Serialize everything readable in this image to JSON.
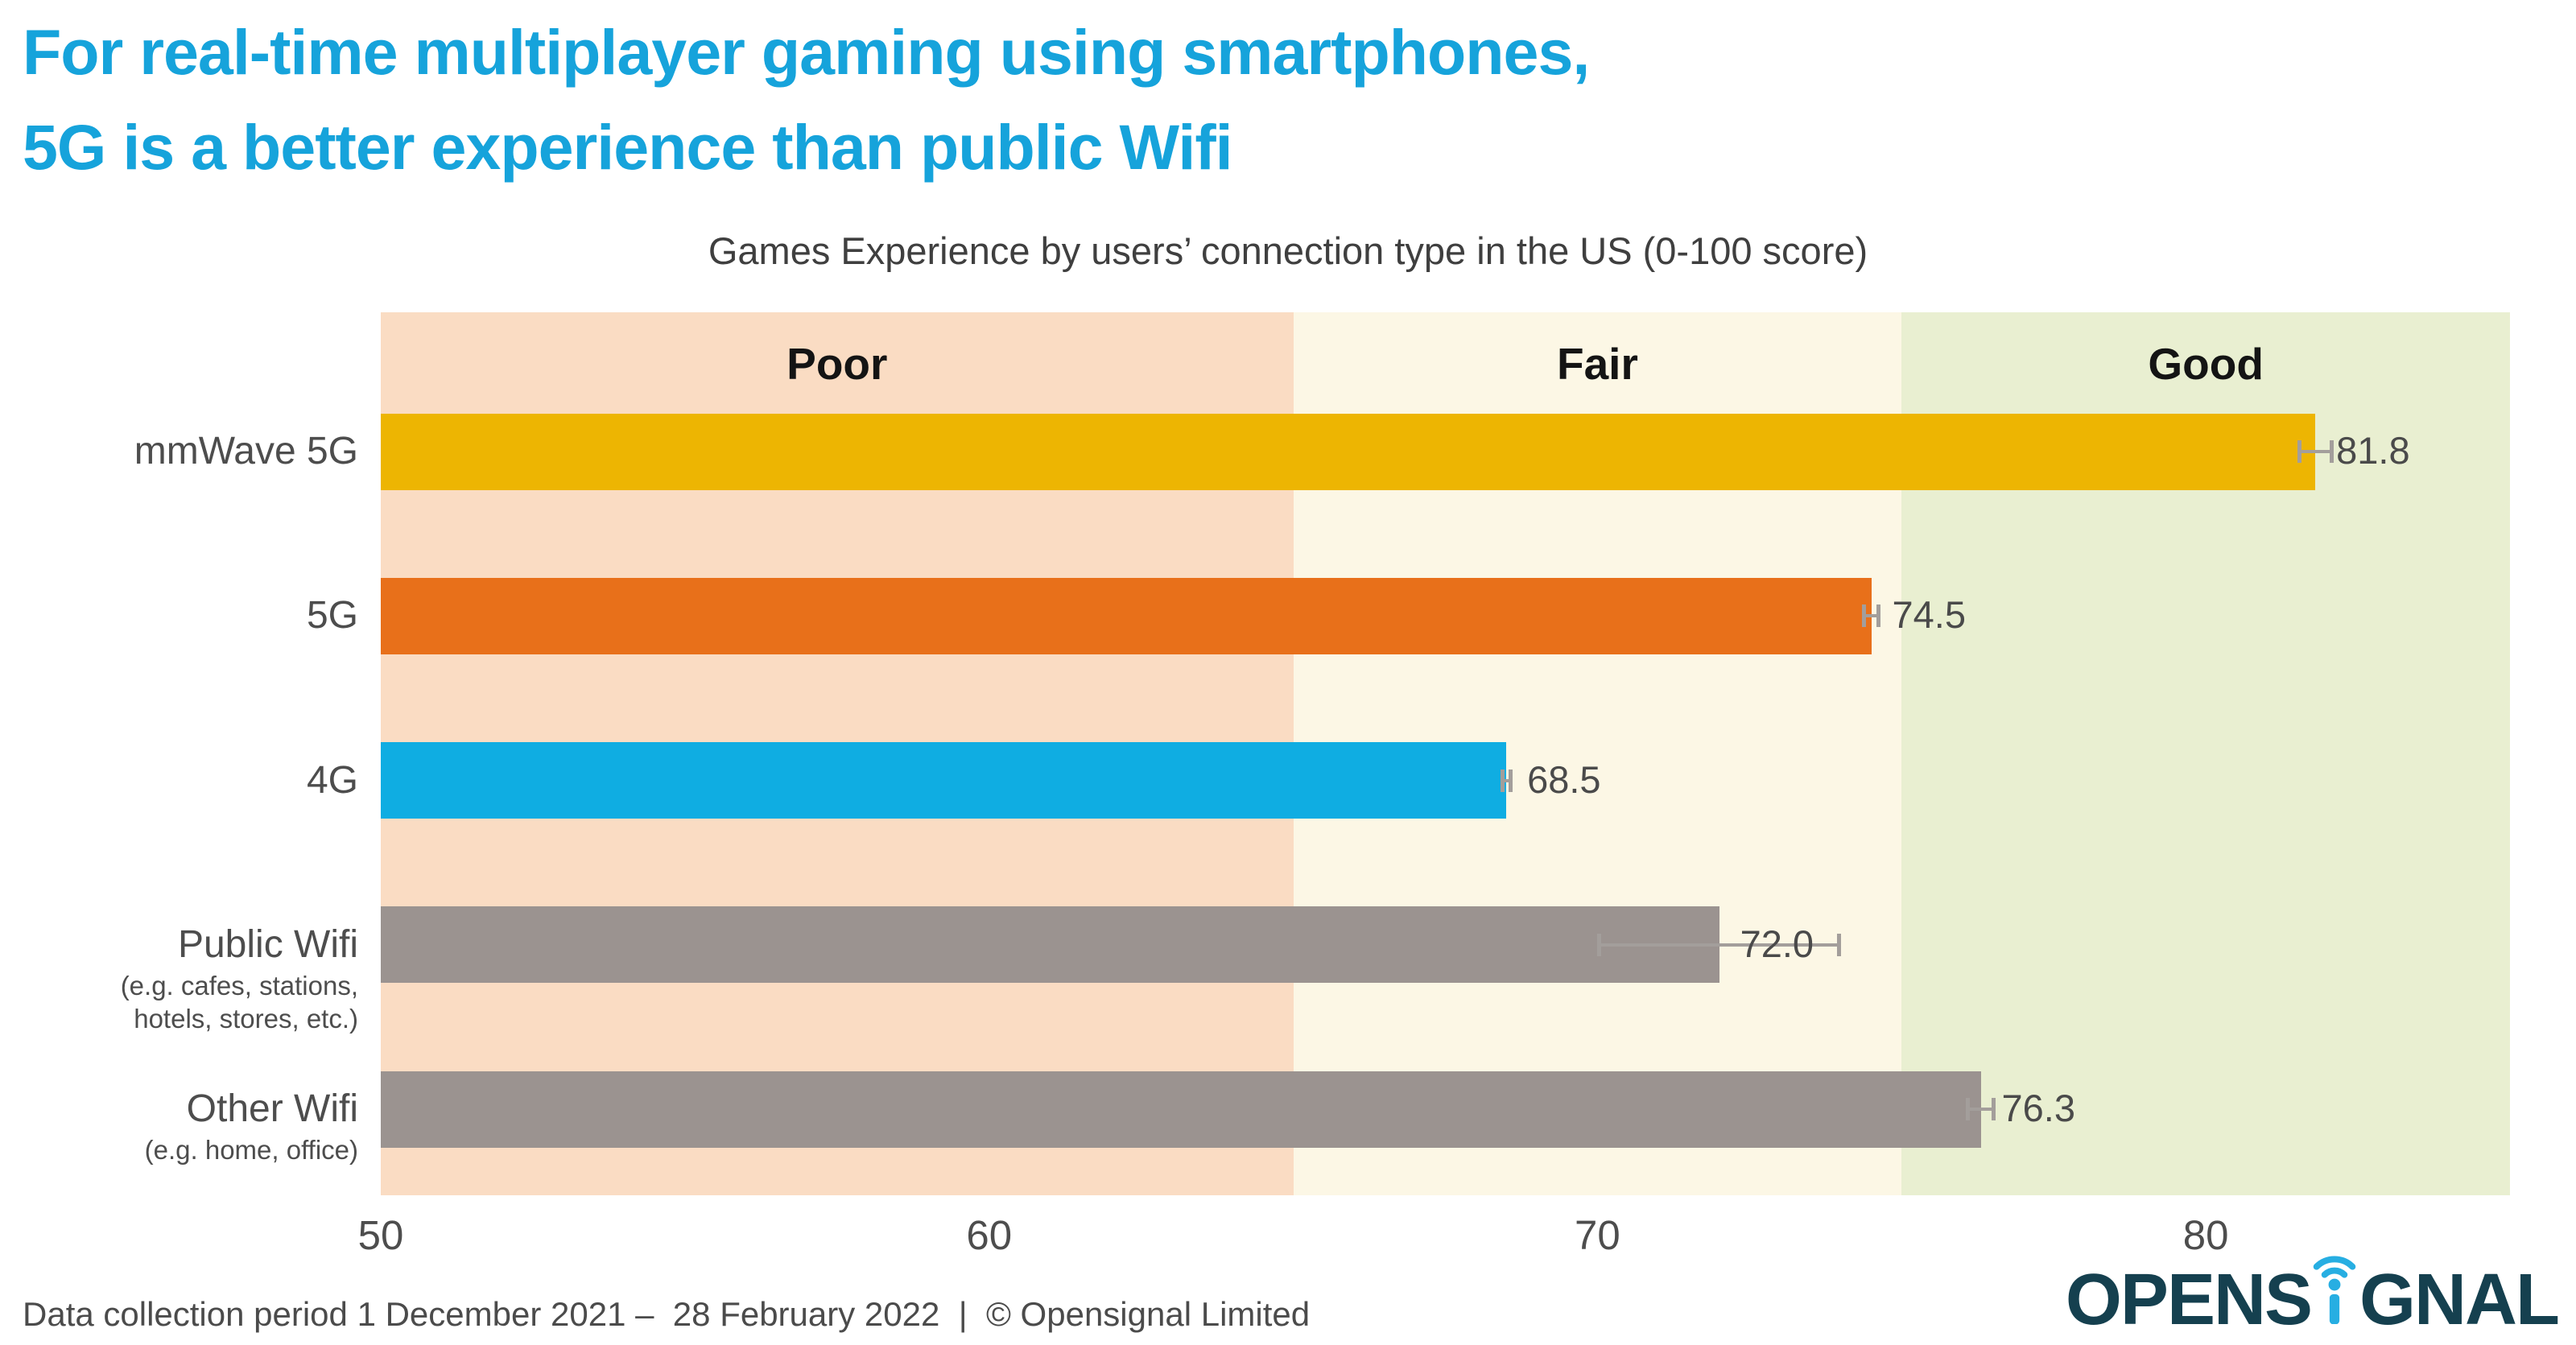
{
  "title": {
    "line1": "For real-time multiplayer gaming using smartphones,",
    "line2": "5G is a better experience than public Wifi",
    "color": "#16a3db"
  },
  "chart_data": {
    "type": "bar",
    "orientation": "horizontal",
    "title": "Games Experience by users’ connection type in the US (0-100 score)",
    "xlabel": "",
    "ylabel": "",
    "xlim": [
      50,
      85
    ],
    "x_ticks": [
      "50",
      "60",
      "70",
      "80"
    ],
    "grid": false,
    "zones": [
      {
        "label": "Poor",
        "from": 50,
        "to": 65,
        "color": "#fadcc3"
      },
      {
        "label": "Fair",
        "from": 65,
        "to": 75,
        "color": "#fcf7e5"
      },
      {
        "label": "Good",
        "from": 75,
        "to": 85,
        "color": "#e9efd1"
      }
    ],
    "categories": [
      {
        "label": "mmWave 5G",
        "sublabel": "",
        "value": 81.8,
        "display": "81.8",
        "error": 0.3,
        "color": "#edb502"
      },
      {
        "label": "5G",
        "sublabel": "",
        "value": 74.5,
        "display": "74.5",
        "error": 0.15,
        "color": "#e8701a"
      },
      {
        "label": "4G",
        "sublabel": "",
        "value": 68.5,
        "display": "68.5",
        "error": 0.1,
        "color": "#0fade2"
      },
      {
        "label": "Public Wifi",
        "sublabel": "(e.g. cafes, stations,\nhotels, stores, etc.)",
        "value": 72.0,
        "display": "72.0",
        "error": 2.0,
        "color": "#9b9390"
      },
      {
        "label": "Other Wifi",
        "sublabel": "(e.g. home, office)",
        "value": 76.3,
        "display": "76.3",
        "error": 0.25,
        "color": "#9b9390"
      }
    ],
    "value_text_color": "#4a4a4a",
    "error_bar_color": "#a39e9b"
  },
  "footer": {
    "text": "Data collection period 1 December 2021 –  28 February 2022  |  © Opensignal Limited"
  },
  "logo": {
    "text_before": "OPENS",
    "text_after": "GNAL",
    "navy": "#15404f",
    "cyan": "#27aee2"
  }
}
